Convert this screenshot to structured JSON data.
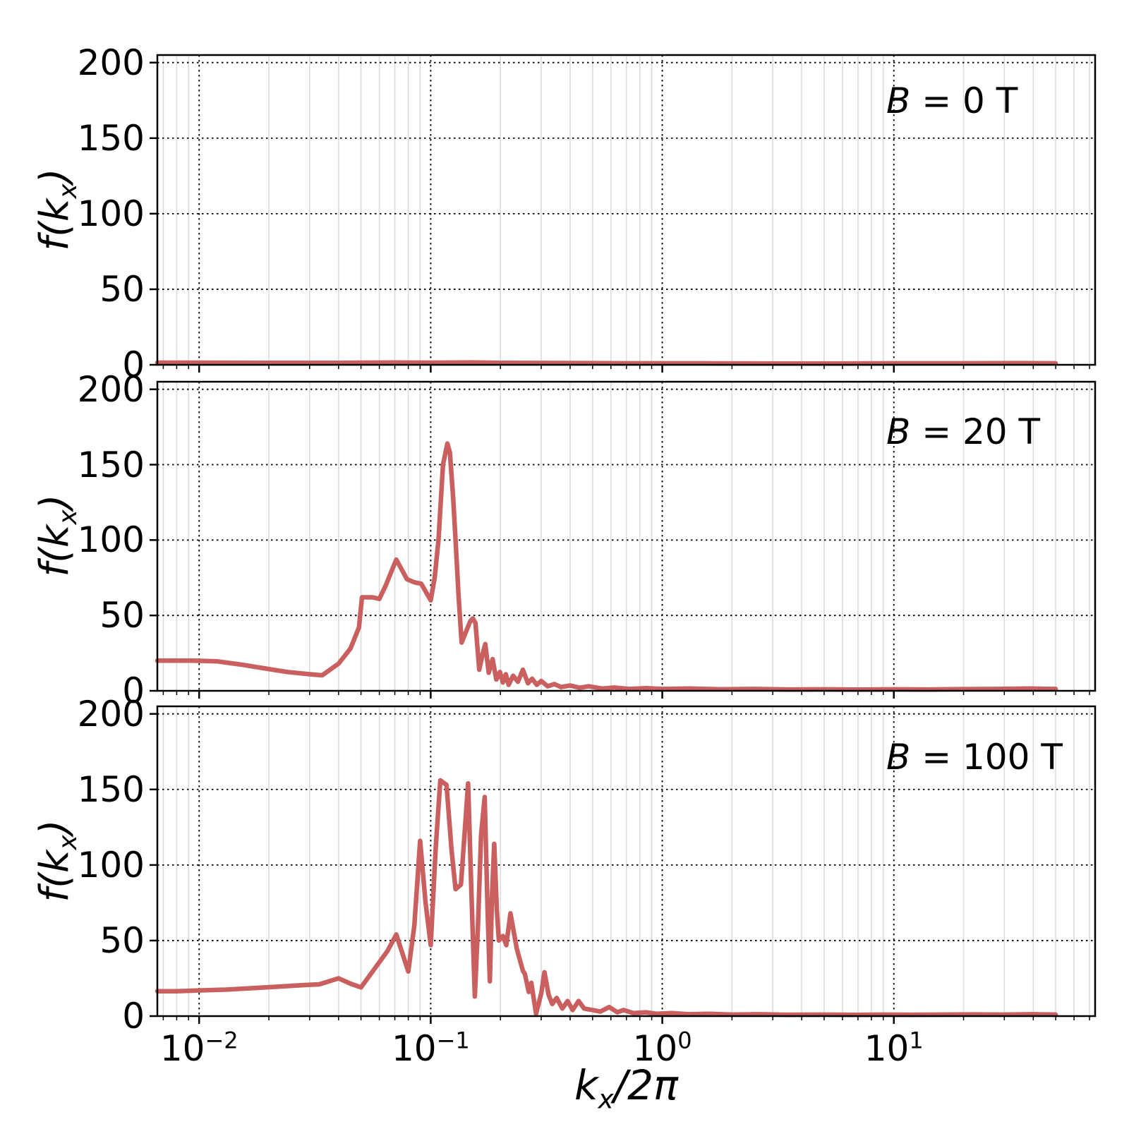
{
  "figure": {
    "background": "#ffffff",
    "line_color": "#c95f5f",
    "spine_color": "#000000",
    "grid_major_color": "#000000",
    "grid_minor_color": "#dcdcdc"
  },
  "chart_data": {
    "type": "line",
    "xscale": "log",
    "xlim": [
      0.0066,
      74
    ],
    "ylim": [
      0,
      205
    ],
    "grid": {
      "major": "dotted black, horizontal at y ticks and vertical at decades",
      "minor": "solid light-gray vertical at log minors"
    },
    "legend": "none",
    "xlabel": {
      "pre": "k",
      "sub": "x",
      "post": "/2π"
    },
    "ylabel": {
      "pre": "f(k",
      "sub": "x",
      "post": ")"
    },
    "x_ticks": [
      {
        "base": "10",
        "exponent": "−2",
        "value": 0.01
      },
      {
        "base": "10",
        "exponent": "−1",
        "value": 0.1
      },
      {
        "base": "10",
        "exponent": "0",
        "value": 1
      },
      {
        "base": "10",
        "exponent": "1",
        "value": 10
      }
    ],
    "y_ticks": [
      {
        "label": "0",
        "value": 0
      },
      {
        "label": "50",
        "value": 50
      },
      {
        "label": "100",
        "value": 100
      },
      {
        "label": "150",
        "value": 150
      },
      {
        "label": "200",
        "value": 200
      }
    ],
    "panels": [
      {
        "name": "B = 0 T",
        "annotation": {
          "var": "B",
          "rest": " = 0 T"
        },
        "points": [
          [
            0.0066,
            1.4
          ],
          [
            0.01,
            1.4
          ],
          [
            0.02,
            1.3
          ],
          [
            0.04,
            1.3
          ],
          [
            0.07,
            1.5
          ],
          [
            0.1,
            1.4
          ],
          [
            0.15,
            1.6
          ],
          [
            0.2,
            1.3
          ],
          [
            0.3,
            1.2
          ],
          [
            0.5,
            1.1
          ],
          [
            0.8,
            1.0
          ],
          [
            1.5,
            1.0
          ],
          [
            3.0,
            0.9
          ],
          [
            6.0,
            0.9
          ],
          [
            10,
            1.0
          ],
          [
            20,
            1.0
          ],
          [
            35,
            1.1
          ],
          [
            50,
            1.0
          ]
        ]
      },
      {
        "name": "B = 20 T",
        "annotation": {
          "var": "B",
          "rest": " = 20 T"
        },
        "points": [
          [
            0.0066,
            20
          ],
          [
            0.008,
            20
          ],
          [
            0.0095,
            20
          ],
          [
            0.012,
            19.5
          ],
          [
            0.015,
            17.5
          ],
          [
            0.019,
            15
          ],
          [
            0.024,
            12.5
          ],
          [
            0.03,
            11
          ],
          [
            0.034,
            10.3
          ],
          [
            0.04,
            18
          ],
          [
            0.045,
            28
          ],
          [
            0.049,
            42
          ],
          [
            0.0505,
            62
          ],
          [
            0.056,
            62
          ],
          [
            0.06,
            61
          ],
          [
            0.064,
            70
          ],
          [
            0.068,
            80
          ],
          [
            0.071,
            87
          ],
          [
            0.074,
            82
          ],
          [
            0.079,
            74
          ],
          [
            0.085,
            72
          ],
          [
            0.091,
            71
          ],
          [
            0.095,
            66
          ],
          [
            0.1,
            60
          ],
          [
            0.104,
            75
          ],
          [
            0.108,
            100
          ],
          [
            0.113,
            150
          ],
          [
            0.118,
            164
          ],
          [
            0.121,
            158
          ],
          [
            0.125,
            128
          ],
          [
            0.128,
            100
          ],
          [
            0.132,
            62
          ],
          [
            0.136,
            32
          ],
          [
            0.141,
            38
          ],
          [
            0.148,
            46
          ],
          [
            0.152,
            48
          ],
          [
            0.156,
            45
          ],
          [
            0.162,
            14
          ],
          [
            0.168,
            25
          ],
          [
            0.172,
            31
          ],
          [
            0.178,
            12
          ],
          [
            0.185,
            21
          ],
          [
            0.192,
            7.5
          ],
          [
            0.199,
            12.5
          ],
          [
            0.205,
            5.5
          ],
          [
            0.211,
            11
          ],
          [
            0.217,
            4
          ],
          [
            0.227,
            10
          ],
          [
            0.238,
            6
          ],
          [
            0.25,
            14
          ],
          [
            0.263,
            5
          ],
          [
            0.274,
            8
          ],
          [
            0.287,
            4
          ],
          [
            0.3,
            6.5
          ],
          [
            0.32,
            3
          ],
          [
            0.342,
            4.5
          ],
          [
            0.365,
            2.5
          ],
          [
            0.4,
            3.5
          ],
          [
            0.44,
            2
          ],
          [
            0.48,
            3
          ],
          [
            0.55,
            1.5
          ],
          [
            0.62,
            2.2
          ],
          [
            0.72,
            1.2
          ],
          [
            0.85,
            1.8
          ],
          [
            1.0,
            1.2
          ],
          [
            1.3,
            1.5
          ],
          [
            1.8,
            1.0
          ],
          [
            2.5,
            1.2
          ],
          [
            3.5,
            0.9
          ],
          [
            5.0,
            1.0
          ],
          [
            7.0,
            0.8
          ],
          [
            10,
            1.0
          ],
          [
            14,
            0.9
          ],
          [
            20,
            1.1
          ],
          [
            28,
            1.2
          ],
          [
            38,
            1.5
          ],
          [
            45,
            1.3
          ],
          [
            50,
            1.2
          ]
        ]
      },
      {
        "name": "B = 100 T",
        "annotation": {
          "var": "B",
          "rest": " = 100 T"
        },
        "points": [
          [
            0.0066,
            16.5
          ],
          [
            0.008,
            16.5
          ],
          [
            0.01,
            17
          ],
          [
            0.013,
            17.5
          ],
          [
            0.017,
            18.5
          ],
          [
            0.022,
            19.5
          ],
          [
            0.028,
            20.5
          ],
          [
            0.033,
            21
          ],
          [
            0.04,
            25
          ],
          [
            0.045,
            21.5
          ],
          [
            0.05,
            19
          ],
          [
            0.057,
            31
          ],
          [
            0.065,
            43
          ],
          [
            0.071,
            54
          ],
          [
            0.076,
            40
          ],
          [
            0.08,
            29.5
          ],
          [
            0.085,
            60
          ],
          [
            0.09,
            116
          ],
          [
            0.095,
            75
          ],
          [
            0.1,
            47
          ],
          [
            0.105,
            110
          ],
          [
            0.11,
            156
          ],
          [
            0.117,
            153
          ],
          [
            0.123,
            110
          ],
          [
            0.128,
            84
          ],
          [
            0.135,
            87
          ],
          [
            0.14,
            120
          ],
          [
            0.145,
            154
          ],
          [
            0.15,
            80
          ],
          [
            0.155,
            13
          ],
          [
            0.16,
            60
          ],
          [
            0.165,
            120
          ],
          [
            0.171,
            145
          ],
          [
            0.176,
            70
          ],
          [
            0.18,
            23
          ],
          [
            0.184,
            80
          ],
          [
            0.188,
            114
          ],
          [
            0.193,
            70
          ],
          [
            0.197,
            50
          ],
          [
            0.205,
            53
          ],
          [
            0.212,
            47
          ],
          [
            0.221,
            68
          ],
          [
            0.235,
            45
          ],
          [
            0.25,
            30
          ],
          [
            0.255,
            28
          ],
          [
            0.265,
            16
          ],
          [
            0.272,
            22
          ],
          [
            0.285,
            1.5
          ],
          [
            0.3,
            15
          ],
          [
            0.31,
            29
          ],
          [
            0.323,
            14
          ],
          [
            0.335,
            8
          ],
          [
            0.35,
            12
          ],
          [
            0.37,
            5
          ],
          [
            0.39,
            10
          ],
          [
            0.41,
            4
          ],
          [
            0.435,
            10
          ],
          [
            0.46,
            5
          ],
          [
            0.5,
            4
          ],
          [
            0.54,
            3
          ],
          [
            0.59,
            6
          ],
          [
            0.64,
            2.5
          ],
          [
            0.68,
            4
          ],
          [
            0.75,
            2
          ],
          [
            0.85,
            2.5
          ],
          [
            0.95,
            1.5
          ],
          [
            1.1,
            2
          ],
          [
            1.3,
            1.2
          ],
          [
            1.6,
            1.5
          ],
          [
            2.0,
            1.0
          ],
          [
            2.6,
            1.2
          ],
          [
            3.5,
            0.9
          ],
          [
            5.0,
            1.0
          ],
          [
            7.0,
            0.8
          ],
          [
            9.0,
            1.0
          ],
          [
            12,
            0.9
          ],
          [
            16,
            1.0
          ],
          [
            22,
            1.1
          ],
          [
            30,
            1.0
          ],
          [
            40,
            1.2
          ],
          [
            50,
            1.0
          ]
        ]
      }
    ]
  }
}
